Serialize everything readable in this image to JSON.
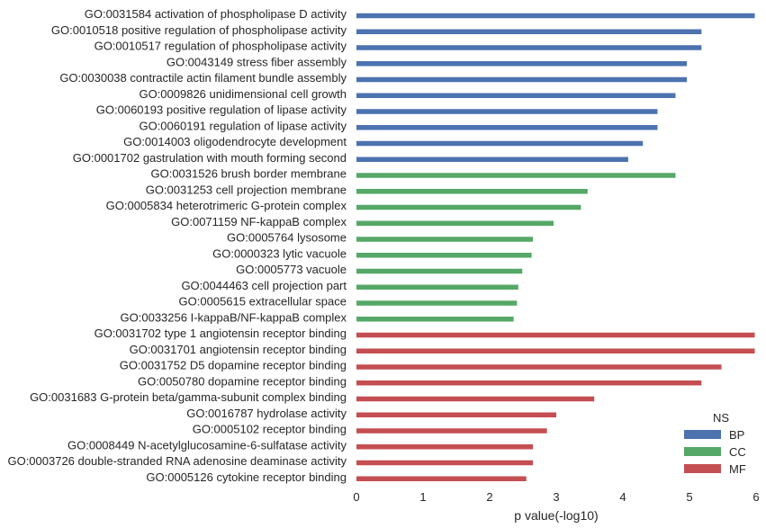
{
  "chart_data": {
    "type": "bar",
    "orientation": "horizontal",
    "xlabel": "p value(-log10)",
    "ylabel": "",
    "xlim": [
      0,
      6
    ],
    "xticks": [
      "0",
      "1",
      "2",
      "3",
      "4",
      "5",
      "6"
    ],
    "grid": false,
    "legend": {
      "title": "NS",
      "position": "lower-right",
      "entries": [
        {
          "label": "BP",
          "color": "#4c72b0"
        },
        {
          "label": "CC",
          "color": "#55a868"
        },
        {
          "label": "MF",
          "color": "#c44e52"
        }
      ]
    },
    "categories": [
      {
        "label": "GO:0031584 activation of phospholipase D activity",
        "ns": "BP",
        "value": 5.98
      },
      {
        "label": "GO:0010518 positive regulation of phospholipase activity",
        "ns": "BP",
        "value": 5.18
      },
      {
        "label": "GO:0010517 regulation of phospholipase activity",
        "ns": "BP",
        "value": 5.18
      },
      {
        "label": "GO:0043149 stress fiber assembly",
        "ns": "BP",
        "value": 4.96
      },
      {
        "label": "GO:0030038 contractile actin filament bundle assembly",
        "ns": "BP",
        "value": 4.96
      },
      {
        "label": "GO:0009826 unidimensional cell growth",
        "ns": "BP",
        "value": 4.79
      },
      {
        "label": "GO:0060193 positive regulation of lipase activity",
        "ns": "BP",
        "value": 4.52
      },
      {
        "label": "GO:0060191 regulation of lipase activity",
        "ns": "BP",
        "value": 4.52
      },
      {
        "label": "GO:0014003 oligodendrocyte development",
        "ns": "BP",
        "value": 4.3
      },
      {
        "label": "GO:0001702 gastrulation with mouth forming second",
        "ns": "BP",
        "value": 4.08
      },
      {
        "label": "GO:0031526 brush border membrane",
        "ns": "CC",
        "value": 4.79
      },
      {
        "label": "GO:0031253 cell projection membrane",
        "ns": "CC",
        "value": 3.47
      },
      {
        "label": "GO:0005834 heterotrimeric G-protein complex",
        "ns": "CC",
        "value": 3.37
      },
      {
        "label": "GO:0071159 NF-kappaB complex",
        "ns": "CC",
        "value": 2.96
      },
      {
        "label": "GO:0005764 lysosome",
        "ns": "CC",
        "value": 2.65
      },
      {
        "label": "GO:0000323 lytic vacuole",
        "ns": "CC",
        "value": 2.63
      },
      {
        "label": "GO:0005773 vacuole",
        "ns": "CC",
        "value": 2.49
      },
      {
        "label": "GO:0044463 cell projection part",
        "ns": "CC",
        "value": 2.43
      },
      {
        "label": "GO:0005615 extracellular space",
        "ns": "CC",
        "value": 2.41
      },
      {
        "label": "GO:0033256 I-kappaB/NF-kappaB complex",
        "ns": "CC",
        "value": 2.36
      },
      {
        "label": "GO:0031702 type 1 angiotensin receptor binding",
        "ns": "MF",
        "value": 5.98
      },
      {
        "label": "GO:0031701 angiotensin receptor binding",
        "ns": "MF",
        "value": 5.98
      },
      {
        "label": "GO:0031752 D5 dopamine receptor binding",
        "ns": "MF",
        "value": 5.48
      },
      {
        "label": "GO:0050780 dopamine receptor binding",
        "ns": "MF",
        "value": 5.18
      },
      {
        "label": "GO:0031683 G-protein beta/gamma-subunit complex binding",
        "ns": "MF",
        "value": 3.57
      },
      {
        "label": "GO:0016787 hydrolase activity",
        "ns": "MF",
        "value": 3.0
      },
      {
        "label": "GO:0005102 receptor binding",
        "ns": "MF",
        "value": 2.86
      },
      {
        "label": "GO:0008449 N-acetylglucosamine-6-sulfatase activity",
        "ns": "MF",
        "value": 2.65
      },
      {
        "label": "GO:0003726 double-stranded RNA adenosine deaminase activity",
        "ns": "MF",
        "value": 2.65
      },
      {
        "label": "GO:0005126 cytokine receptor binding",
        "ns": "MF",
        "value": 2.55
      }
    ]
  }
}
